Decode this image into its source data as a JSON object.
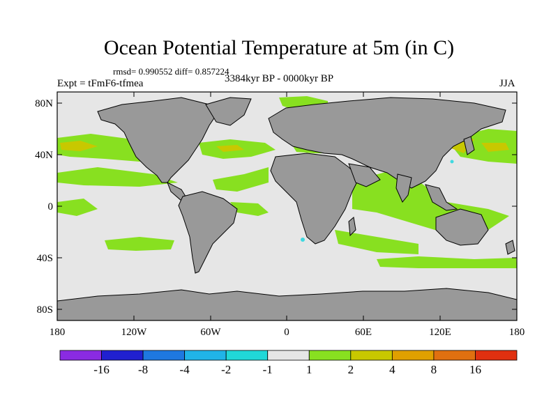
{
  "title": "Ocean Potential Temperature at 5m (in C)",
  "stats_text": "rmsd= 0.990552 diff= 0.857224",
  "experiment_label": "Expt = tFmF6-tfmea",
  "period_label": "3384kyr BP - 0000kyr BP",
  "season_label": "JJA",
  "axes": {
    "lat_ticks": [
      "80N",
      "40N",
      "0",
      "40S",
      "80S"
    ],
    "lon_ticks": [
      "180",
      "120W",
      "60W",
      "0",
      "60E",
      "120E",
      "180"
    ]
  },
  "colors": {
    "ocean_background": "#e6e6e6",
    "land": "#999999",
    "coast": "#000000",
    "anomaly_green": "#88e020",
    "anomaly_yellow": "#c8c800",
    "anomaly_cyan": "#40d8e0"
  },
  "colorbar": {
    "colors": [
      "#8a2be2",
      "#2020d0",
      "#1e78e0",
      "#20b4e8",
      "#20d8d8",
      "#e6e6e6",
      "#88e020",
      "#c8c800",
      "#e0a000",
      "#e07010",
      "#e03010"
    ],
    "labels": [
      "-16",
      "-8",
      "-4",
      "-2",
      "-1",
      "1",
      "2",
      "4",
      "8",
      "16"
    ]
  }
}
